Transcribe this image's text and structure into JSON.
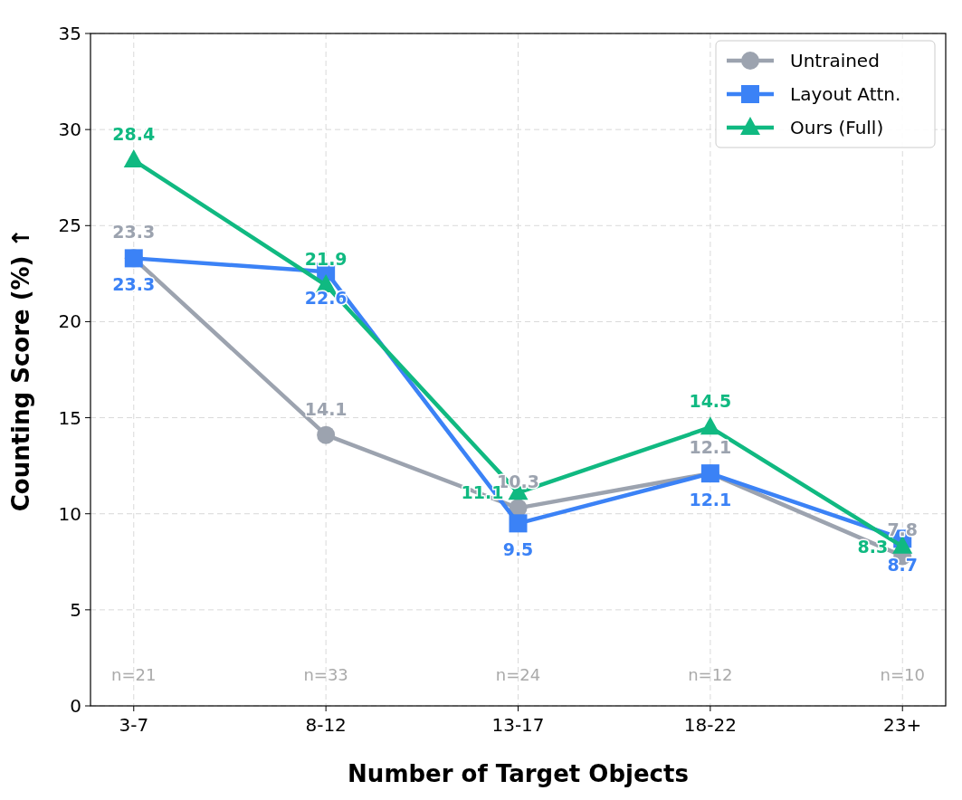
{
  "chart_data": {
    "type": "line",
    "xlabel": "Number of Target Objects",
    "ylabel": "Counting Score (%) ↑",
    "categories": [
      "3-7",
      "8-12",
      "13-17",
      "18-22",
      "23+"
    ],
    "series": [
      {
        "name": "Untrained",
        "color": "#9ca3af",
        "marker": "circle",
        "values": [
          23.3,
          14.1,
          10.3,
          12.1,
          7.8
        ]
      },
      {
        "name": "Layout Attn.",
        "color": "#3b82f6",
        "marker": "square",
        "values": [
          23.3,
          22.6,
          9.5,
          12.1,
          8.7
        ]
      },
      {
        "name": "Ours (Full)",
        "color": "#10b981",
        "marker": "triangle",
        "values": [
          28.4,
          21.9,
          11.1,
          14.5,
          8.3
        ]
      }
    ],
    "ylim": [
      0,
      35
    ],
    "yticks": [
      0,
      5,
      10,
      15,
      20,
      25,
      30,
      35
    ],
    "grid": true,
    "legend": "top right",
    "data_labels": true,
    "line_style": "solid",
    "annotations": [
      "n=21",
      "n=33",
      "n=24",
      "n=12",
      "n=10"
    ]
  }
}
